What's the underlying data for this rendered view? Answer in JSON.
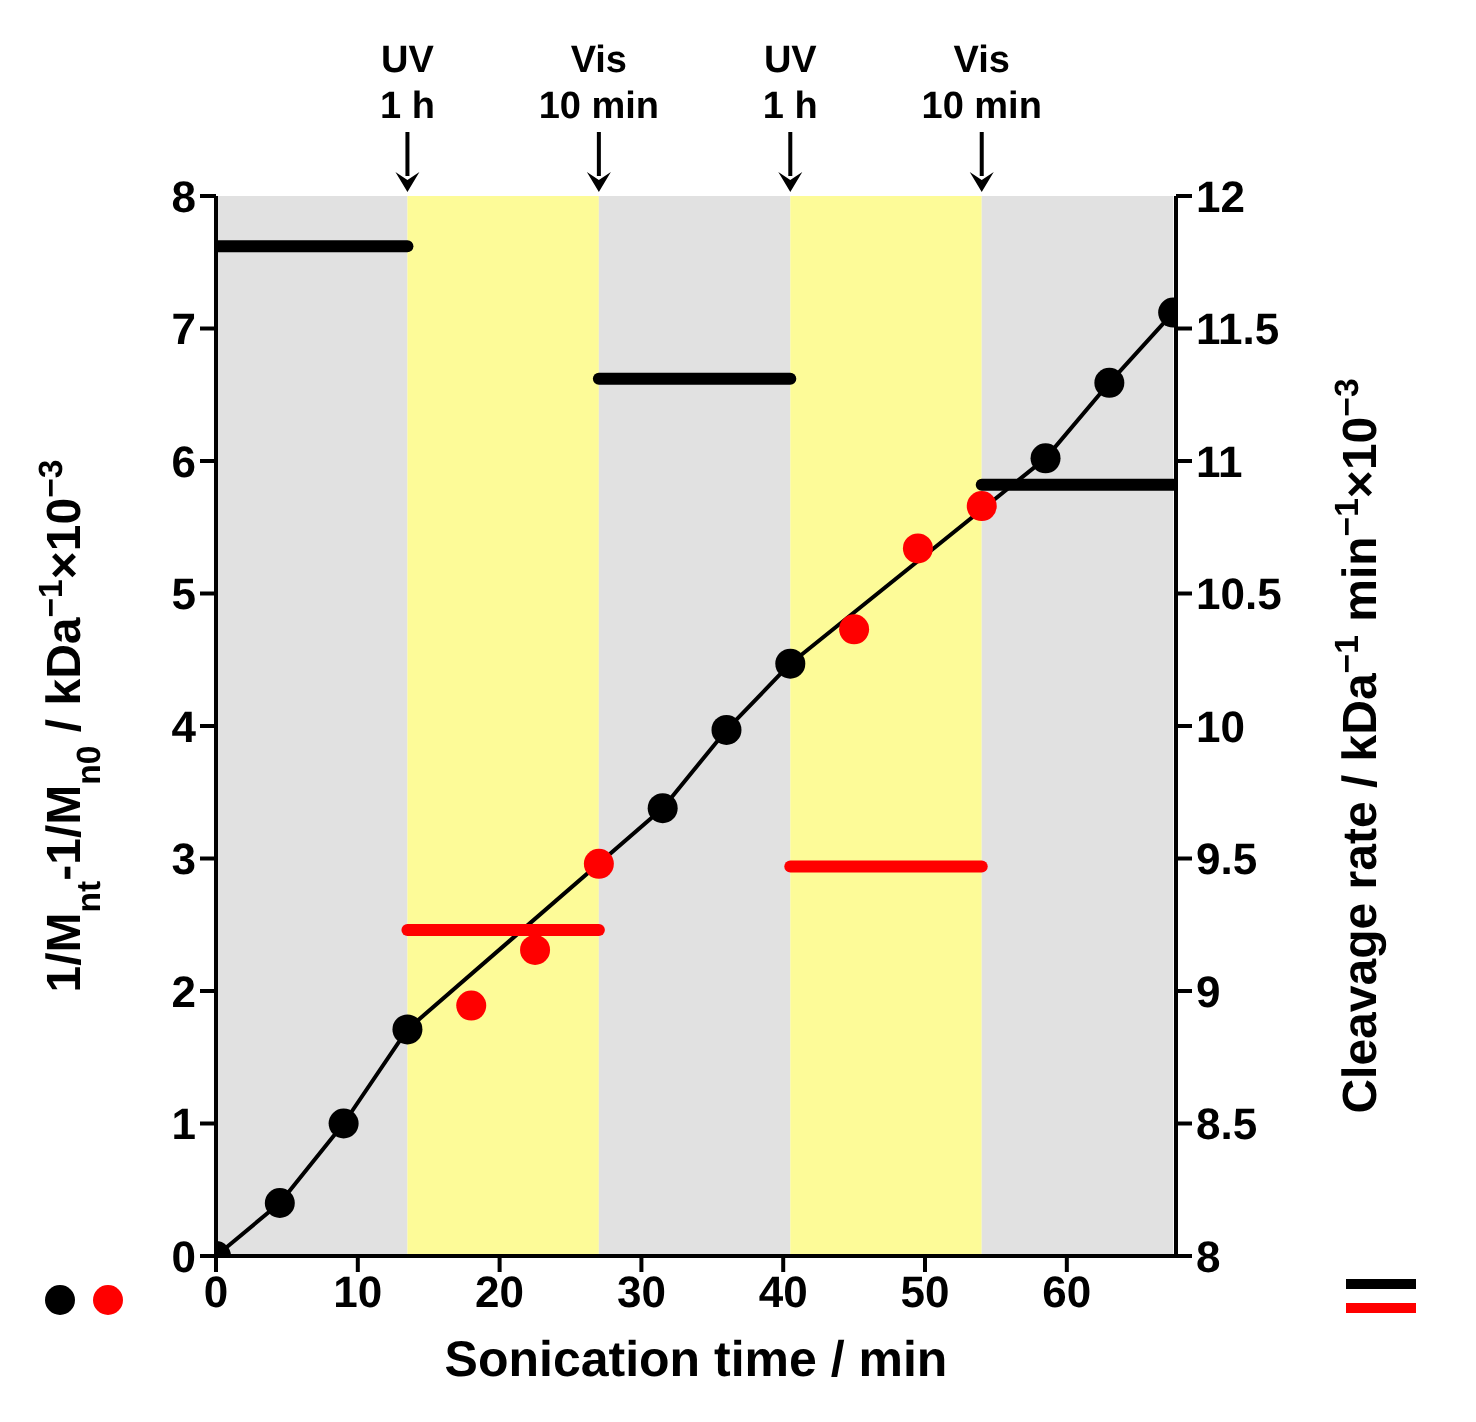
{
  "chart_data": {
    "type": "scatter",
    "xlabel": "Sonication time / min",
    "ylabel": "1/M$_{nt}$-1/M$_{n0}$ / kDa$^{−1}$×10$^{−3}$",
    "y2label": "Cleavage rate / kDa$^{−1}$ min$^{−1}$×10$^{−3}$",
    "xlim": [
      0,
      67.7
    ],
    "xticks": [
      0,
      10,
      20,
      30,
      40,
      50,
      60
    ],
    "ylim": [
      0,
      8
    ],
    "yticks": [
      0,
      1,
      2,
      3,
      4,
      5,
      6,
      7,
      8
    ],
    "y2lim": [
      8,
      12
    ],
    "y2ticks": [
      8,
      8.5,
      9,
      9.5,
      10,
      10.5,
      11,
      11.5,
      12
    ],
    "grid": false,
    "legend": false,
    "marker": "circle",
    "bands": [
      {
        "axis": "x",
        "from": 0,
        "to": 13.5,
        "color": "#e1e1e1"
      },
      {
        "axis": "x",
        "from": 13.5,
        "to": 27,
        "color": "#fdfb98"
      },
      {
        "axis": "x",
        "from": 27,
        "to": 40.5,
        "color": "#e1e1e1"
      },
      {
        "axis": "x",
        "from": 40.5,
        "to": 54,
        "color": "#fdfb98"
      },
      {
        "axis": "x",
        "from": 54,
        "to": 67.5,
        "color": "#e1e1e1"
      }
    ],
    "annotations": [
      "UV\n1 h",
      "Vis\n10 min",
      "UV\n1 h",
      "Vis\n10 min"
    ],
    "series": [
      {
        "type": "line",
        "color": "#000000",
        "marker": "circle",
        "x": [
          0,
          4.5,
          9,
          13.5,
          31.5,
          36,
          40.5,
          58.5,
          63,
          67.5
        ],
        "values": [
          0,
          0.4,
          1.0,
          1.71,
          3.38,
          3.97,
          4.47,
          6.02,
          6.59,
          7.12
        ]
      },
      {
        "type": "scatter",
        "color": "#ff0000",
        "x": [
          18,
          22.5,
          27,
          45,
          49.5,
          54
        ],
        "values": [
          1.89,
          2.31,
          2.96,
          4.73,
          5.34,
          5.66
        ]
      },
      {
        "type": "line",
        "axis": "y2",
        "color": "#000000",
        "marker": "none",
        "x": [
          0,
          13.5
        ],
        "values": [
          11.81,
          11.81
        ]
      },
      {
        "type": "line",
        "axis": "y2",
        "color": "#ff0000",
        "marker": "none",
        "x": [
          13.5,
          27
        ],
        "values": [
          9.23,
          9.23
        ]
      },
      {
        "type": "line",
        "axis": "y2",
        "color": "#000000",
        "marker": "none",
        "x": [
          27,
          40.5
        ],
        "values": [
          11.31,
          11.31
        ]
      },
      {
        "type": "line",
        "axis": "y2",
        "color": "#ff0000",
        "marker": "none",
        "x": [
          40.5,
          54
        ],
        "values": [
          9.47,
          9.47
        ]
      },
      {
        "type": "line",
        "axis": "y2",
        "color": "#000000",
        "marker": "none",
        "x": [
          54,
          67.5
        ],
        "values": [
          10.91,
          10.91
        ]
      }
    ]
  }
}
